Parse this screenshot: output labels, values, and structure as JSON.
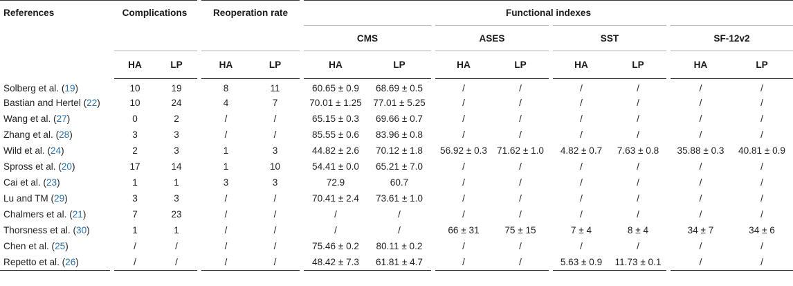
{
  "header": {
    "references": "References",
    "complications": "Complications",
    "reoperation_rate": "Reoperation rate",
    "functional_indexes": "Functional indexes",
    "cms": "CMS",
    "ases": "ASES",
    "sst": "SST",
    "sf12v2": "SF-12v2",
    "ha": "HA",
    "lp": "LP"
  },
  "rows": [
    {
      "author": "Solberg et al. (",
      "cite": "19",
      "close": ")",
      "c_ha": "10",
      "c_lp": "19",
      "r_ha": "8",
      "r_lp": "11",
      "cms_ha": "60.65 ± 0.9",
      "cms_lp": "68.69 ± 0.5",
      "ases_ha": "/",
      "ases_lp": "/",
      "sst_ha": "/",
      "sst_lp": "/",
      "sf_ha": "/",
      "sf_lp": "/"
    },
    {
      "author": "Bastian and Hertel (",
      "cite": "22",
      "close": ")",
      "c_ha": "10",
      "c_lp": "24",
      "r_ha": "4",
      "r_lp": "7",
      "cms_ha": "70.01 ± 1.25",
      "cms_lp": "77.01 ± 5.25",
      "ases_ha": "/",
      "ases_lp": "/",
      "sst_ha": "/",
      "sst_lp": "/",
      "sf_ha": "/",
      "sf_lp": "/"
    },
    {
      "author": "Wang et al. (",
      "cite": "27",
      "close": ")",
      "c_ha": "0",
      "c_lp": "2",
      "r_ha": "/",
      "r_lp": "/",
      "cms_ha": "65.15 ± 0.3",
      "cms_lp": "69.66 ± 0.7",
      "ases_ha": "/",
      "ases_lp": "/",
      "sst_ha": "/",
      "sst_lp": "/",
      "sf_ha": "/",
      "sf_lp": "/"
    },
    {
      "author": "Zhang et al. (",
      "cite": "28",
      "close": ")",
      "c_ha": "3",
      "c_lp": "3",
      "r_ha": "/",
      "r_lp": "/",
      "cms_ha": "85.55 ± 0.6",
      "cms_lp": "83.96 ± 0.8",
      "ases_ha": "/",
      "ases_lp": "/",
      "sst_ha": "/",
      "sst_lp": "/",
      "sf_ha": "/",
      "sf_lp": "/"
    },
    {
      "author": "Wild et al. (",
      "cite": "24",
      "close": ")",
      "c_ha": "2",
      "c_lp": "3",
      "r_ha": "1",
      "r_lp": "3",
      "cms_ha": "44.82 ± 2.6",
      "cms_lp": "70.12 ± 1.8",
      "ases_ha": "56.92 ± 0.3",
      "ases_lp": "71.62 ± 1.0",
      "sst_ha": "4.82 ± 0.7",
      "sst_lp": "7.63 ± 0.8",
      "sf_ha": "35.88 ± 0.3",
      "sf_lp": "40.81 ± 0.9"
    },
    {
      "author": "Spross et al. (",
      "cite": "20",
      "close": ")",
      "c_ha": "17",
      "c_lp": "14",
      "r_ha": "1",
      "r_lp": "10",
      "cms_ha": "54.41 ± 0.0",
      "cms_lp": "65.21 ± 7.0",
      "ases_ha": "/",
      "ases_lp": "/",
      "sst_ha": "/",
      "sst_lp": "/",
      "sf_ha": "/",
      "sf_lp": "/"
    },
    {
      "author": "Cai et al. (",
      "cite": "23",
      "close": ")",
      "c_ha": "1",
      "c_lp": "1",
      "r_ha": "3",
      "r_lp": "3",
      "cms_ha": "72.9",
      "cms_lp": "60.7",
      "ases_ha": "/",
      "ases_lp": "/",
      "sst_ha": "/",
      "sst_lp": "/",
      "sf_ha": "/",
      "sf_lp": "/"
    },
    {
      "author": "Lu and TM (",
      "cite": "29",
      "close": ")",
      "c_ha": "3",
      "c_lp": "3",
      "r_ha": "/",
      "r_lp": "/",
      "cms_ha": "70.41 ± 2.4",
      "cms_lp": "73.61 ± 1.0",
      "ases_ha": "/",
      "ases_lp": "/",
      "sst_ha": "/",
      "sst_lp": "/",
      "sf_ha": "/",
      "sf_lp": "/"
    },
    {
      "author": "Chalmers et al. (",
      "cite": "21",
      "close": ")",
      "c_ha": "7",
      "c_lp": "23",
      "r_ha": "/",
      "r_lp": "/",
      "cms_ha": "/",
      "cms_lp": "/",
      "ases_ha": "/",
      "ases_lp": "/",
      "sst_ha": "/",
      "sst_lp": "/",
      "sf_ha": "/",
      "sf_lp": "/"
    },
    {
      "author": "Thorsness et al. (",
      "cite": "30",
      "close": ")",
      "c_ha": "1",
      "c_lp": "1",
      "r_ha": "/",
      "r_lp": "/",
      "cms_ha": "/",
      "cms_lp": "/",
      "ases_ha": "66 ± 31",
      "ases_lp": "75 ± 15",
      "sst_ha": "7 ± 4",
      "sst_lp": "8 ± 4",
      "sf_ha": "34 ± 7",
      "sf_lp": "34 ± 6"
    },
    {
      "author": "Chen et al. (",
      "cite": "25",
      "close": ")",
      "c_ha": "/",
      "c_lp": "/",
      "r_ha": "/",
      "r_lp": "/",
      "cms_ha": "75.46 ± 0.2",
      "cms_lp": "80.11 ± 0.2",
      "ases_ha": "/",
      "ases_lp": "/",
      "sst_ha": "/",
      "sst_lp": "/",
      "sf_ha": "/",
      "sf_lp": "/"
    },
    {
      "author": "Repetto et al. (",
      "cite": "26",
      "close": ")",
      "c_ha": "/",
      "c_lp": "/",
      "r_ha": "/",
      "r_lp": "/",
      "cms_ha": "48.42 ± 7.3",
      "cms_lp": "61.81 ± 4.7",
      "ases_ha": "/",
      "ases_lp": "/",
      "sst_ha": "5.63 ± 0.9",
      "sst_lp": "11.73 ± 0.1",
      "sf_ha": "/",
      "sf_lp": "/"
    }
  ],
  "colors": {
    "citation": "#2a6fa8",
    "rule": "#333333"
  }
}
